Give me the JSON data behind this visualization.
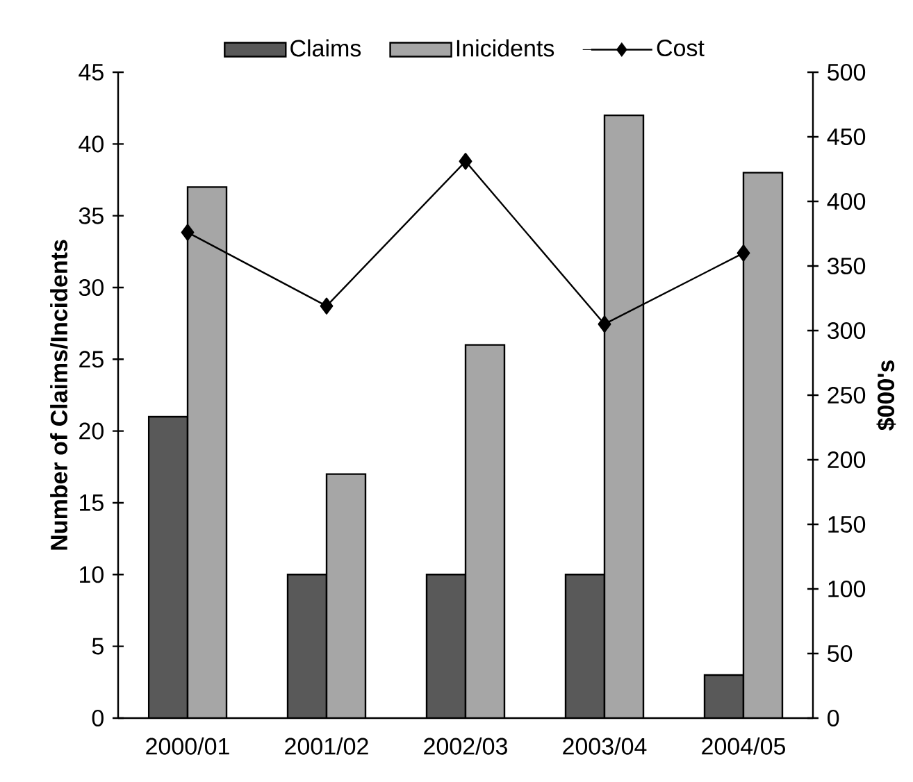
{
  "chart_data": {
    "type": "bar",
    "categories": [
      "2000/01",
      "2001/02",
      "2002/03",
      "2003/04",
      "2004/05"
    ],
    "series": [
      {
        "name": "Claims",
        "color": "#595959",
        "values": [
          21,
          10,
          10,
          10,
          3
        ]
      },
      {
        "name": "Inicidents",
        "color": "#a6a6a6",
        "values": [
          37,
          17,
          26,
          42,
          38
        ]
      },
      {
        "name": "Cost",
        "color": "#000000",
        "type": "line",
        "axis": "y2",
        "marker": "diamond",
        "values": [
          376,
          319,
          431,
          305,
          360
        ]
      }
    ],
    "ylabel": "Number of Claims/Incidents",
    "y2label": "$000's",
    "ylim": [
      0,
      45
    ],
    "yticks": [
      0,
      5,
      10,
      15,
      20,
      25,
      30,
      35,
      40,
      45
    ],
    "y2lim": [
      0,
      500
    ],
    "y2ticks": [
      0,
      50,
      100,
      150,
      200,
      250,
      300,
      350,
      400,
      450,
      500
    ],
    "grid": false,
    "legend": "top"
  }
}
